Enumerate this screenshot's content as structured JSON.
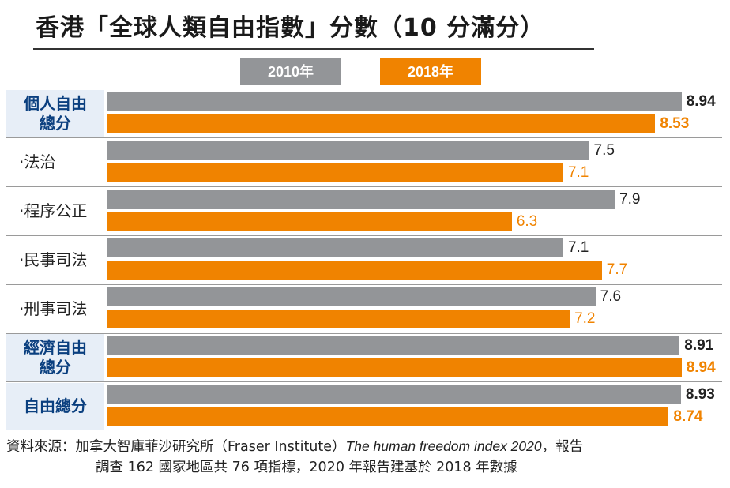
{
  "title": "香港「全球人類自由指數」分數（10 分滿分）",
  "colors": {
    "y2010": "#939598",
    "y2018": "#f08300",
    "total_label_bg": "#e7eef7",
    "total_label_text": "#0a3f7f"
  },
  "chart_data": {
    "type": "bar",
    "orientation": "horizontal",
    "title": "香港「全球人類自由指數」分數（10 分滿分）",
    "categories": [
      "個人自由總分",
      "‧法治",
      "‧程序公正",
      "‧民事司法",
      "‧刑事司法",
      "經濟自由總分",
      "自由總分"
    ],
    "category_lines": [
      [
        "個人自由",
        "總分"
      ],
      [
        "‧法治"
      ],
      [
        "‧程序公正"
      ],
      [
        "‧民事司法"
      ],
      [
        "‧刑事司法"
      ],
      [
        "經濟自由",
        "總分"
      ],
      [
        "自由總分"
      ]
    ],
    "category_is_total": [
      true,
      false,
      false,
      false,
      false,
      true,
      true
    ],
    "series": [
      {
        "name": "2010年",
        "values": [
          8.94,
          7.5,
          7.9,
          7.1,
          7.6,
          8.91,
          8.93
        ]
      },
      {
        "name": "2018年",
        "values": [
          8.53,
          7.1,
          6.3,
          7.7,
          7.2,
          8.94,
          8.74
        ]
      }
    ],
    "value_labels": [
      [
        "8.94",
        "7.5",
        "7.9",
        "7.1",
        "7.6",
        "8.91",
        "8.93"
      ],
      [
        "8.53",
        "7.1",
        "6.3",
        "7.7",
        "7.2",
        "8.94",
        "8.74"
      ]
    ],
    "xlim": [
      0,
      10
    ],
    "legend": "top-center",
    "grid": false
  },
  "source": {
    "line1_prefix": "資料來源：加拿大智庫菲沙研究所（Fraser Institute）",
    "line1_italic": "The human freedom index 2020",
    "line1_suffix": "，報告",
    "line2": "調查 162 國家地區共 76 項指標，2020 年報告建基於 2018 年數據"
  }
}
